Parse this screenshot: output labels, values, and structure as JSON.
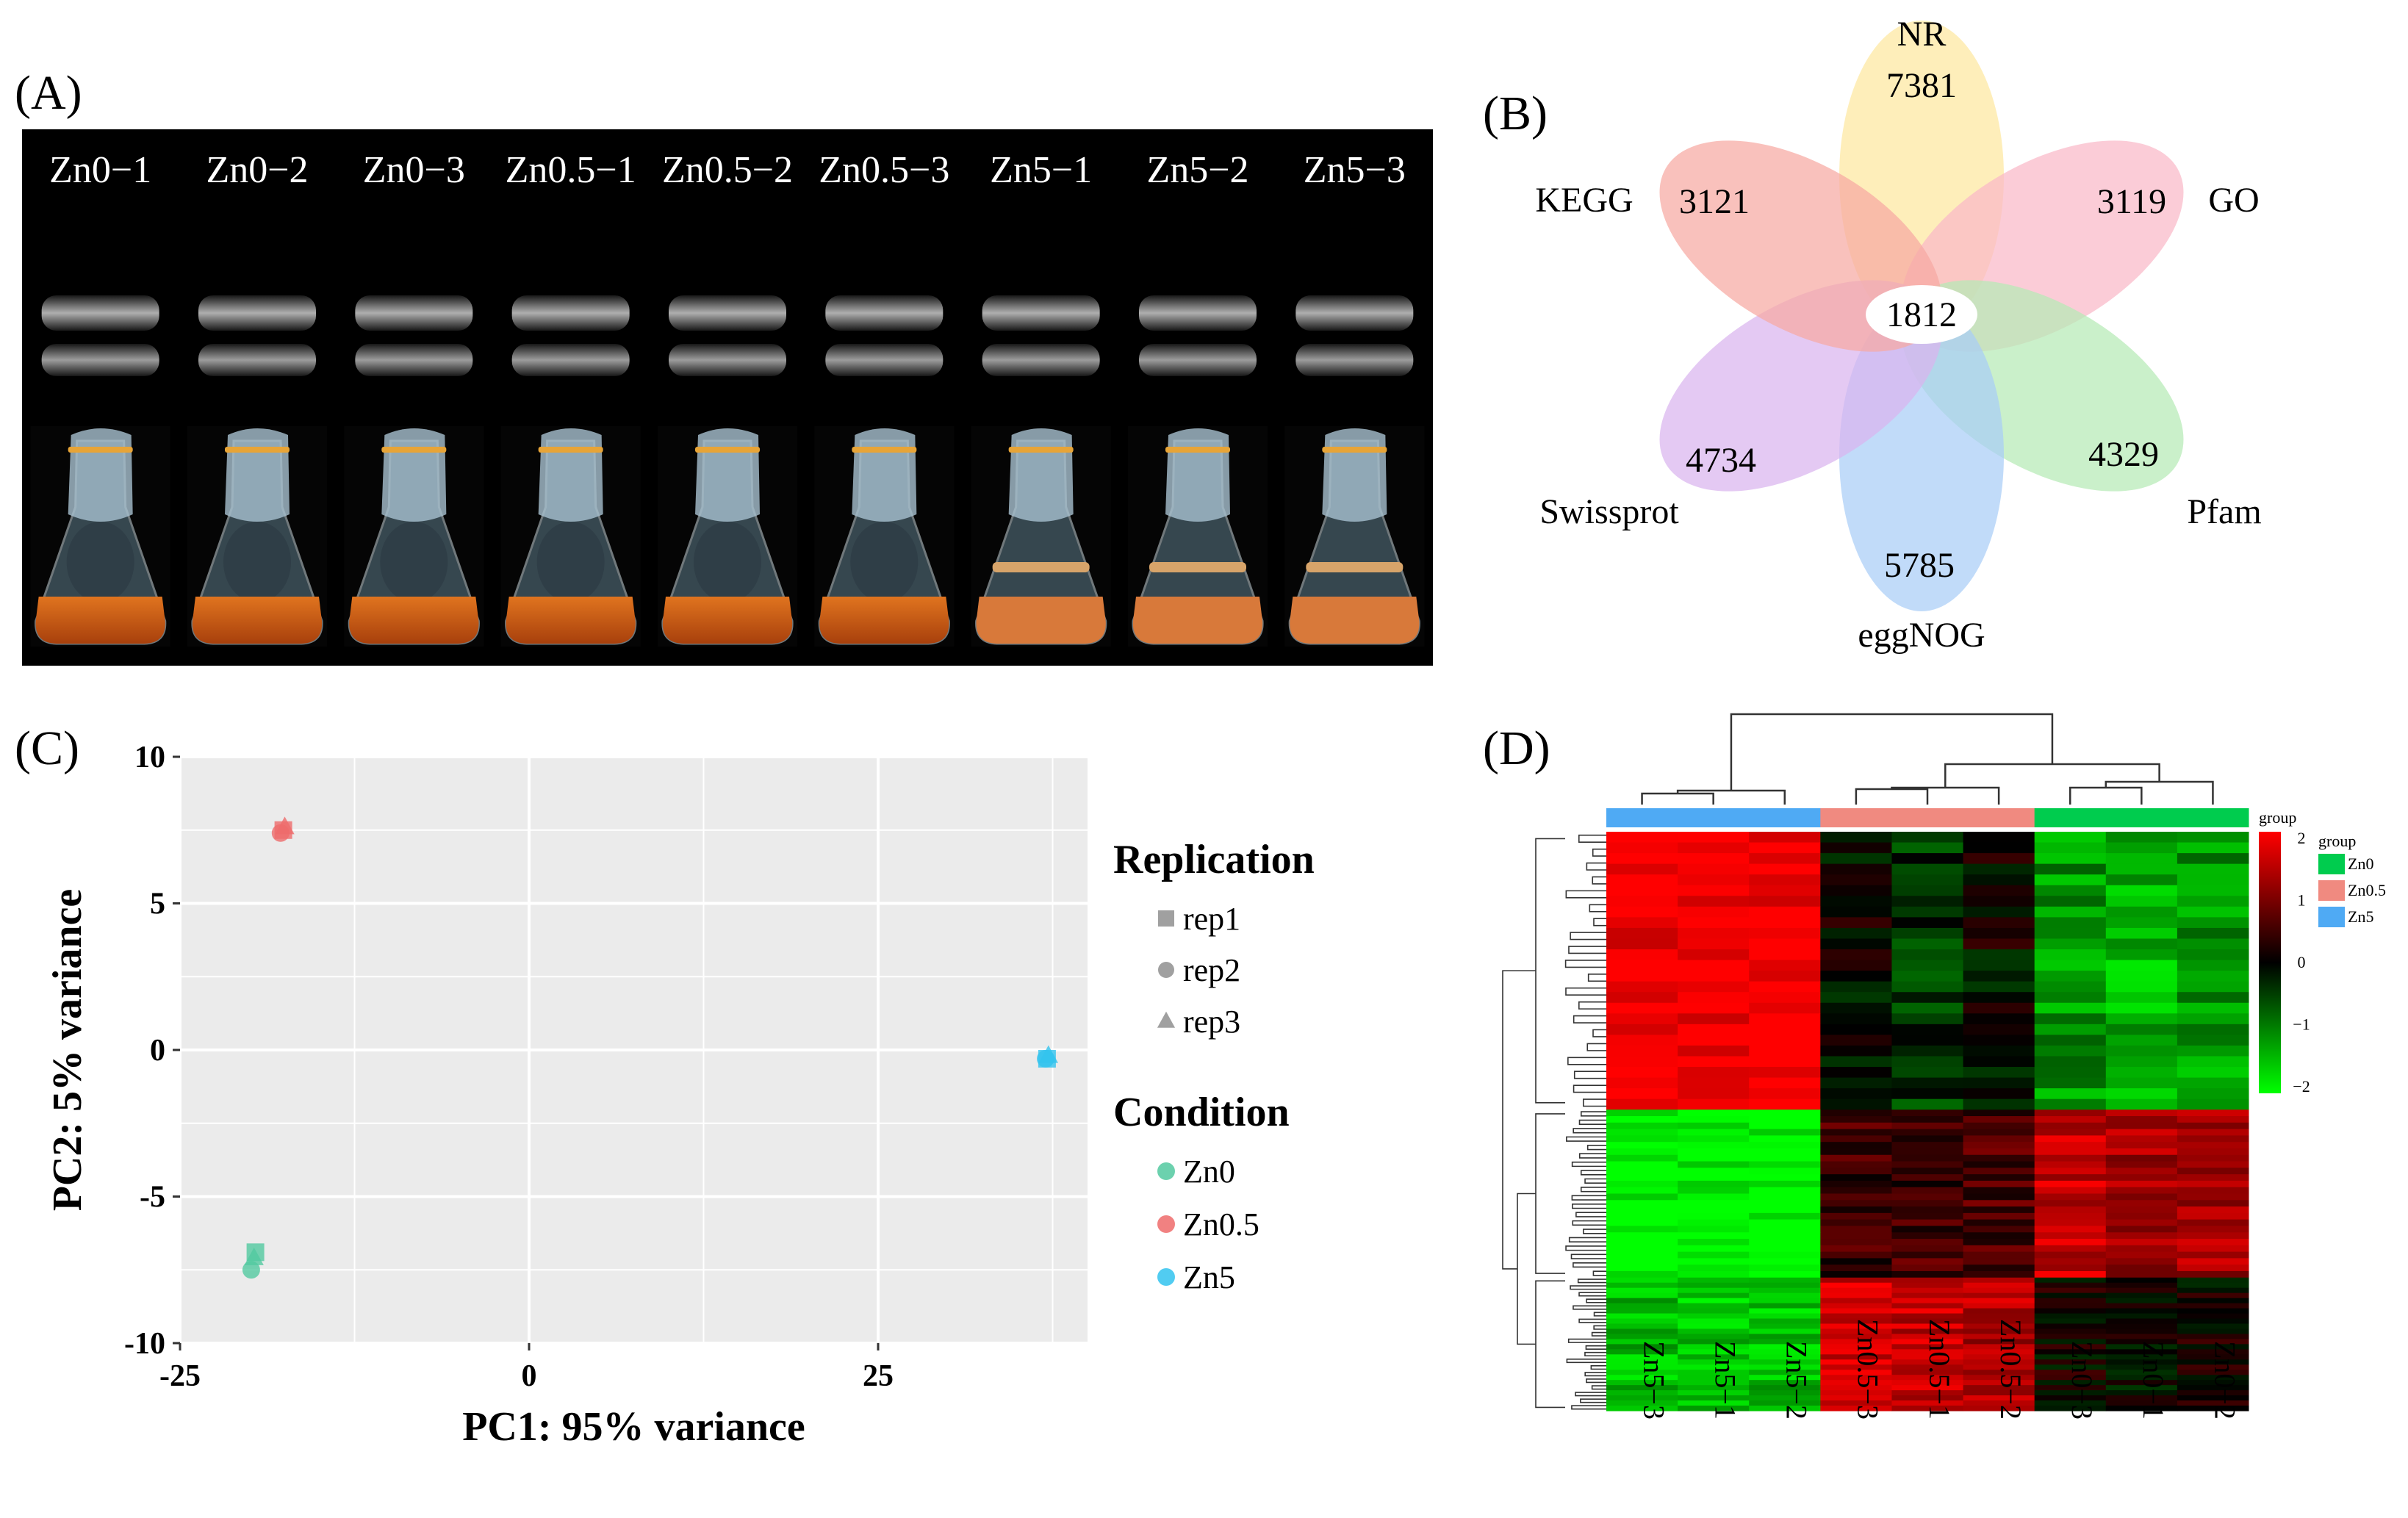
{
  "panel_a": {
    "label": "(A)",
    "samples": [
      "Zn0−1",
      "Zn0−2",
      "Zn0−3",
      "Zn0.5−1",
      "Zn0.5−2",
      "Zn0.5−3",
      "Zn5−1",
      "Zn5−2",
      "Zn5−3"
    ]
  },
  "panel_b": {
    "label": "(B)",
    "center_value": "1812",
    "petals": [
      {
        "name": "NR",
        "value": "7381",
        "color": "#fde7a0"
      },
      {
        "name": "GO",
        "value": "3119",
        "color": "#f9b8c8"
      },
      {
        "name": "Pfam",
        "value": "4329",
        "color": "#b5eab5"
      },
      {
        "name": "eggNOG",
        "value": "5785",
        "color": "#a9cdf6"
      },
      {
        "name": "Swissprot",
        "value": "4734",
        "color": "#d9b4ef"
      },
      {
        "name": "KEGG",
        "value": "3121",
        "color": "#f6a9a2"
      }
    ]
  },
  "panel_c": {
    "label": "(C)",
    "chart_data": {
      "type": "scatter",
      "xlabel": "PC1: 95% variance",
      "ylabel": "PC2: 5% variance",
      "xlim": [
        -25,
        40
      ],
      "ylim": [
        -10,
        10
      ],
      "xticks": [
        "-25",
        "0",
        "25"
      ],
      "xtick_values": [
        -25,
        0,
        25
      ],
      "yticks": [
        "10",
        "5",
        "0",
        "-5",
        "-10"
      ],
      "ytick_values": [
        10,
        5,
        0,
        -5,
        -10
      ],
      "grid": true,
      "series": [
        {
          "name": "Zn0",
          "color": "#52c9a0",
          "points": [
            {
              "x": -19.6,
              "y": -6.9,
              "rep": "rep1"
            },
            {
              "x": -19.9,
              "y": -7.5,
              "rep": "rep2"
            },
            {
              "x": -19.7,
              "y": -7.1,
              "rep": "rep3"
            }
          ]
        },
        {
          "name": "Zn0.5",
          "color": "#ee6b6b",
          "points": [
            {
              "x": -17.6,
              "y": 7.5,
              "rep": "rep1"
            },
            {
              "x": -17.8,
              "y": 7.4,
              "rep": "rep2"
            },
            {
              "x": -17.5,
              "y": 7.6,
              "rep": "rep3"
            }
          ]
        },
        {
          "name": "Zn5",
          "color": "#33c3ee",
          "points": [
            {
              "x": 37.1,
              "y": -0.3,
              "rep": "rep1"
            },
            {
              "x": 37.0,
              "y": -0.3,
              "rep": "rep2"
            },
            {
              "x": 37.2,
              "y": -0.2,
              "rep": "rep3"
            }
          ]
        }
      ],
      "legend": {
        "replication_title": "Replication",
        "replication_items": [
          "rep1",
          "rep2",
          "rep3"
        ],
        "condition_title": "Condition",
        "condition_items": [
          "Zn0",
          "Zn0.5",
          "Zn5"
        ]
      }
    }
  },
  "panel_d": {
    "label": "(D)",
    "chart_data": {
      "type": "heatmap",
      "columns": [
        "Zn5−3",
        "Zn5−1",
        "Zn5−2",
        "Zn0.5−3",
        "Zn0.5−1",
        "Zn0.5−2",
        "Zn0−3",
        "Zn0−1",
        "Zn0−2"
      ],
      "column_groups": [
        "Zn5",
        "Zn5",
        "Zn5",
        "Zn0.5",
        "Zn0.5",
        "Zn0.5",
        "Zn0",
        "Zn0",
        "Zn0"
      ],
      "row_blocks": [
        {
          "fraction": 0.48,
          "values": [
            2,
            2,
            2,
            0,
            -0.4,
            0,
            -1.2,
            -1.4,
            -1.2
          ]
        },
        {
          "fraction": 0.29,
          "values": [
            -2,
            -2,
            -2,
            0.5,
            0.5,
            0.6,
            1.5,
            1.3,
            1.3
          ]
        },
        {
          "fraction": 0.23,
          "values": [
            -1.5,
            -1.5,
            -1.5,
            1.6,
            1.5,
            1.4,
            0.1,
            0,
            0.1
          ]
        }
      ],
      "scale_title": "group",
      "scale_ticks": [
        "2",
        "1",
        "0",
        "−1",
        "−2"
      ],
      "scale_tick_values": [
        2,
        1,
        0,
        -1,
        -2
      ],
      "group_legend_title": "group",
      "group_legend": [
        {
          "name": "Zn0",
          "color": "#00cc4e"
        },
        {
          "name": "Zn0.5",
          "color": "#f08a80"
        },
        {
          "name": "Zn5",
          "color": "#4faaf4"
        }
      ]
    }
  }
}
